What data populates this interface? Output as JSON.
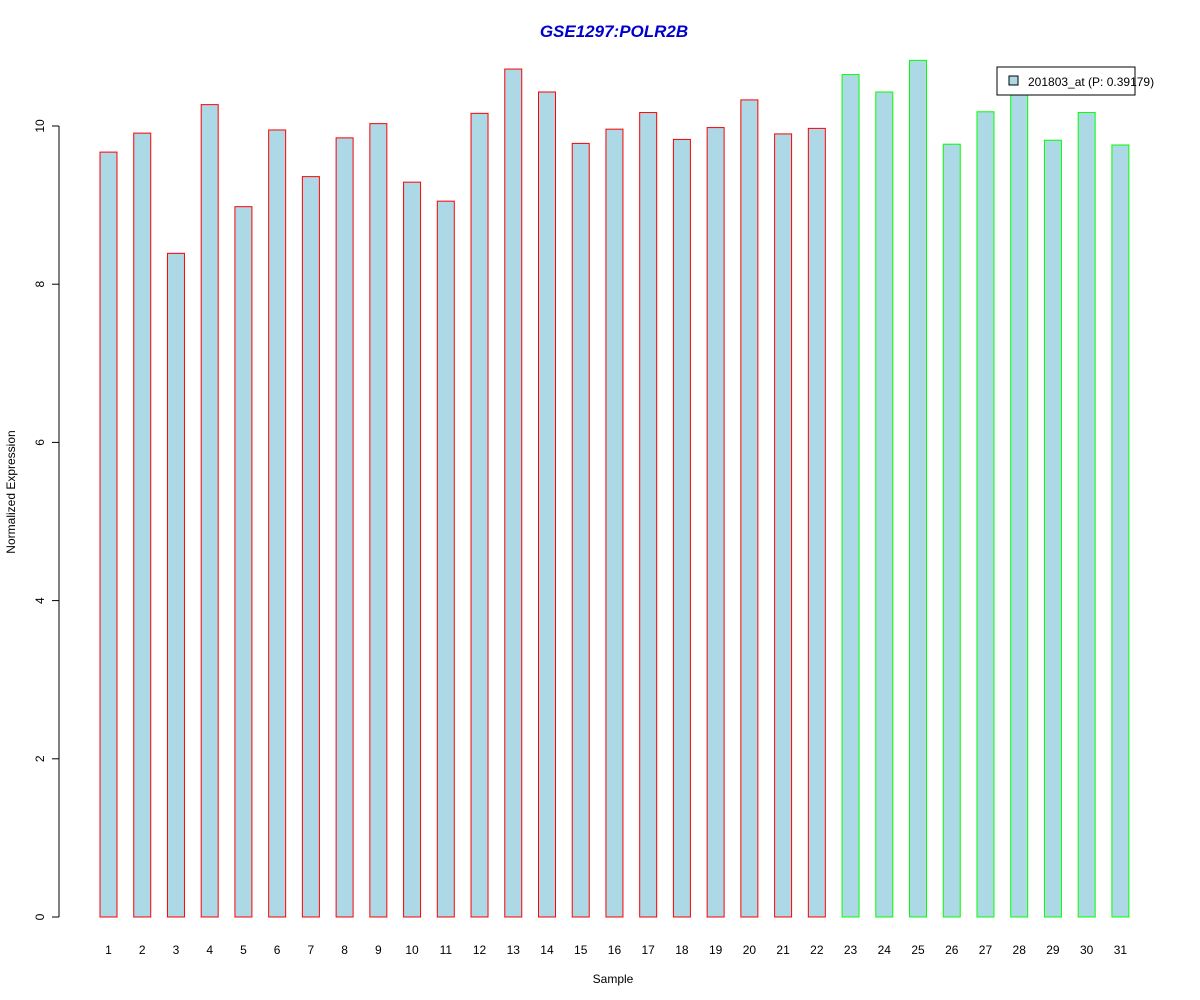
{
  "chart_data": {
    "type": "bar",
    "title": "GSE1297:POLR2B",
    "xlabel": "Sample",
    "ylabel": "Normalized Expression",
    "categories": [
      "1",
      "2",
      "3",
      "4",
      "5",
      "6",
      "7",
      "8",
      "9",
      "10",
      "11",
      "12",
      "13",
      "14",
      "15",
      "16",
      "17",
      "18",
      "19",
      "20",
      "21",
      "22",
      "23",
      "24",
      "25",
      "26",
      "27",
      "28",
      "29",
      "30",
      "31"
    ],
    "values": [
      9.67,
      9.91,
      8.39,
      10.27,
      8.98,
      9.95,
      9.36,
      9.85,
      10.03,
      9.29,
      9.05,
      10.16,
      10.72,
      10.43,
      9.78,
      9.96,
      10.17,
      9.83,
      9.98,
      10.33,
      9.9,
      9.97,
      10.65,
      10.43,
      10.83,
      9.77,
      10.18,
      10.45,
      9.82,
      10.17,
      9.76
    ],
    "groups": [
      "red",
      "red",
      "red",
      "red",
      "red",
      "red",
      "red",
      "red",
      "red",
      "red",
      "red",
      "red",
      "red",
      "red",
      "red",
      "red",
      "red",
      "red",
      "red",
      "red",
      "red",
      "red",
      "green",
      "green",
      "green",
      "green",
      "green",
      "green",
      "green",
      "green",
      "green"
    ],
    "ylim": [
      0,
      10
    ],
    "yticks": [
      "0",
      "2",
      "4",
      "6",
      "8",
      "10"
    ],
    "legend": {
      "label": "201803_at (P: 0.39179)",
      "position": "top-right"
    },
    "grid": false,
    "colors": {
      "fill": "#add8e6",
      "red": "#ff0000",
      "green": "#00ff00",
      "title": "#0000cc",
      "axis": "#000000"
    }
  }
}
